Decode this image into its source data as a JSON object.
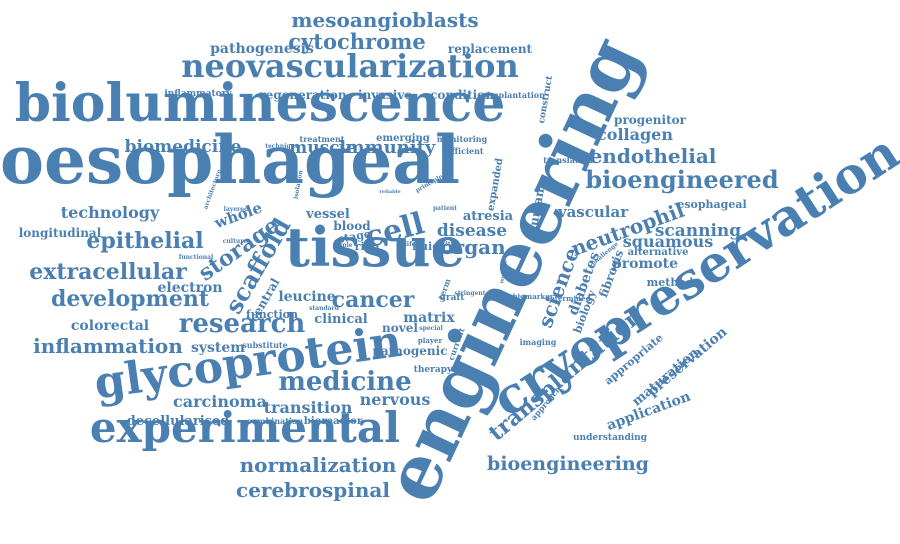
{
  "colors": {
    "ink": "#4a7fb2",
    "background": "#ffffff"
  },
  "words": [
    {
      "text": "engineering"
    },
    {
      "text": "oesophageal"
    },
    {
      "text": "bioluminescence"
    },
    {
      "text": "cryopreservation"
    },
    {
      "text": "tissue"
    },
    {
      "text": "glycoprotein"
    },
    {
      "text": "experimental"
    },
    {
      "text": "neovascularization"
    },
    {
      "text": "mesoangioblasts"
    },
    {
      "text": "cytochrome"
    },
    {
      "text": "pathogenesis"
    },
    {
      "text": "replacement"
    },
    {
      "text": "regeneration"
    },
    {
      "text": "invasive"
    },
    {
      "text": "condition"
    },
    {
      "text": "implantation"
    },
    {
      "text": "construct"
    },
    {
      "text": "inflammatory"
    },
    {
      "text": "biomedicine"
    },
    {
      "text": "muscle"
    },
    {
      "text": "immunity"
    },
    {
      "text": "treatment"
    },
    {
      "text": "emerging"
    },
    {
      "text": "monitoring"
    },
    {
      "text": "efficient"
    },
    {
      "text": "technique"
    },
    {
      "text": "progenitor"
    },
    {
      "text": "collagen"
    },
    {
      "text": "endothelial"
    },
    {
      "text": "bioengineered"
    },
    {
      "text": "translation"
    },
    {
      "text": "esophageal"
    },
    {
      "text": "vascular"
    },
    {
      "text": "neutrophil"
    },
    {
      "text": "scanning"
    },
    {
      "text": "squamous"
    },
    {
      "text": "alternative"
    },
    {
      "text": "promote"
    },
    {
      "text": "method"
    },
    {
      "text": "fibrosis"
    },
    {
      "text": "diabetes"
    },
    {
      "text": "science"
    },
    {
      "text": "biology"
    },
    {
      "text": "human"
    },
    {
      "text": "expanded"
    },
    {
      "text": "atresia"
    },
    {
      "text": "disease"
    },
    {
      "text": "organ"
    },
    {
      "text": "cell"
    },
    {
      "text": "fluid"
    },
    {
      "text": "rich"
    },
    {
      "text": "stage"
    },
    {
      "text": "blood"
    },
    {
      "text": "vessel"
    },
    {
      "text": "whole"
    },
    {
      "text": "technology"
    },
    {
      "text": "longitudinal"
    },
    {
      "text": "epithelial"
    },
    {
      "text": "storage"
    },
    {
      "text": "scaffold"
    },
    {
      "text": "extracellular"
    },
    {
      "text": "electron"
    },
    {
      "text": "development"
    },
    {
      "text": "central"
    },
    {
      "text": "leucine"
    },
    {
      "text": "cancer"
    },
    {
      "text": "function"
    },
    {
      "text": "clinical"
    },
    {
      "text": "matrix"
    },
    {
      "text": "novel"
    },
    {
      "text": "colorectal"
    },
    {
      "text": "research"
    },
    {
      "text": "inflammation"
    },
    {
      "text": "system"
    },
    {
      "text": "substitute"
    },
    {
      "text": "pathogenic"
    },
    {
      "text": "therapy"
    },
    {
      "text": "medicine"
    },
    {
      "text": "carcinoma"
    },
    {
      "text": "transition"
    },
    {
      "text": "nervous"
    },
    {
      "text": "decellularised"
    },
    {
      "text": "combination"
    },
    {
      "text": "bioreactor"
    },
    {
      "text": "normalization"
    },
    {
      "text": "cerebrospinal"
    },
    {
      "text": "bioengineering"
    },
    {
      "text": "transplantation"
    },
    {
      "text": "application"
    },
    {
      "text": "understanding"
    },
    {
      "text": "maturation"
    },
    {
      "text": "preservation"
    },
    {
      "text": "appropriate"
    },
    {
      "text": "approach"
    },
    {
      "text": "imaging"
    },
    {
      "text": "biomarker"
    },
    {
      "text": "determined"
    },
    {
      "text": "graft"
    },
    {
      "text": "term"
    },
    {
      "text": "current"
    },
    {
      "text": "player"
    },
    {
      "text": "special"
    },
    {
      "text": "architecture"
    },
    {
      "text": "functional"
    },
    {
      "text": "layered"
    },
    {
      "text": "culture"
    },
    {
      "text": "isolation"
    },
    {
      "text": "patient"
    },
    {
      "text": "principle"
    },
    {
      "text": "reliable"
    },
    {
      "text": "challenge"
    },
    {
      "text": "standard"
    },
    {
      "text": "role"
    },
    {
      "text": "life"
    },
    {
      "text": "vitro"
    },
    {
      "text": "multiple"
    },
    {
      "text": "stringent"
    }
  ]
}
